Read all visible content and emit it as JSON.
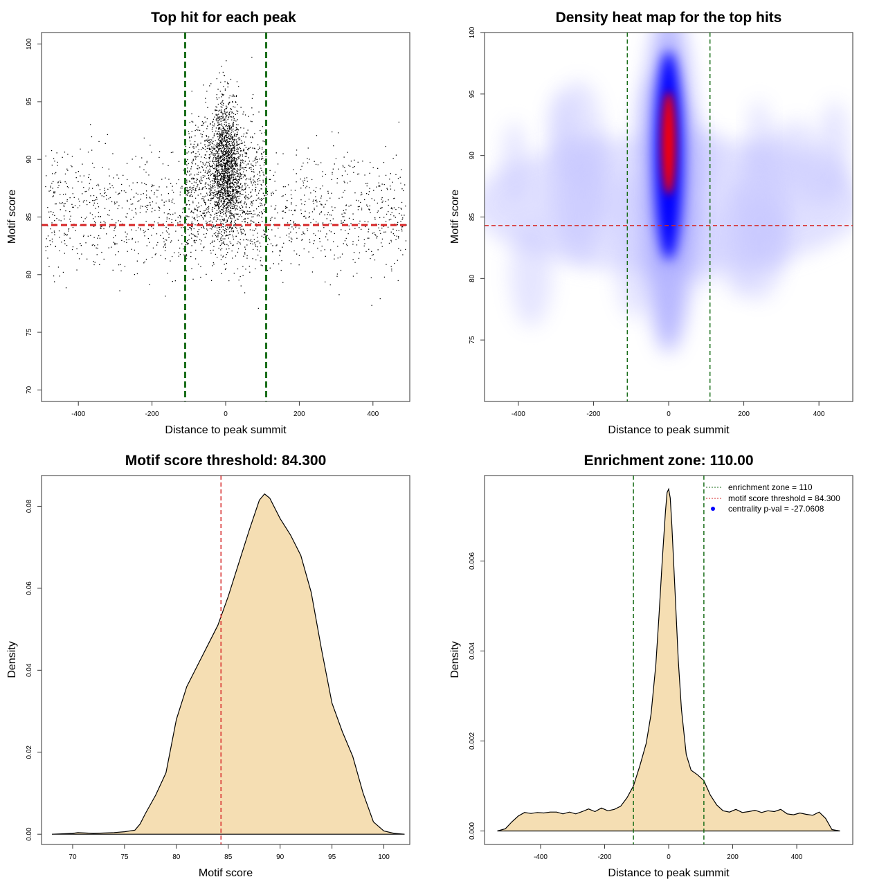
{
  "chart_data": [
    {
      "id": "scatter",
      "type": "scatter",
      "title": "Top hit for each peak",
      "xlabel": "Distance to peak summit",
      "ylabel": "Motif score",
      "xlim": [
        -500,
        500
      ],
      "ylim": [
        69,
        101
      ],
      "xticks": [
        -400,
        -200,
        0,
        200,
        400
      ],
      "yticks": [
        70,
        75,
        80,
        85,
        90,
        95,
        100
      ],
      "vlines": [
        -110,
        110
      ],
      "hline": 84.3,
      "colors": {
        "points": "#000000",
        "vlines": "#1a6e1a",
        "hline": "#d62728"
      },
      "points_summary": {
        "central_band": {
          "x_center": 0,
          "x_spread": 30,
          "y_center": 89.5,
          "y_spread": 4,
          "count": 1600
        },
        "mid_band": {
          "x_range": [
            -110,
            110
          ],
          "y_center": 88,
          "y_spread": 4.5,
          "count": 900
        },
        "background": {
          "x_range": [
            -490,
            490
          ],
          "y_center": 85.5,
          "y_spread": 3.8,
          "count": 1400
        }
      }
    },
    {
      "id": "heatmap",
      "type": "heatmap",
      "title": "Density heat map for the top hits",
      "xlabel": "Distance to peak summit",
      "ylabel": "Motif score",
      "xlim": [
        -490,
        490
      ],
      "ylim": [
        70,
        100
      ],
      "xticks": [
        -400,
        -200,
        0,
        200,
        400
      ],
      "yticks": [
        75,
        80,
        85,
        90,
        95,
        100
      ],
      "vlines": [
        -110,
        110
      ],
      "hline": 84.3,
      "peak": {
        "x": 0,
        "y": 91
      },
      "colors": {
        "low": "#ffffff",
        "mid": "#0000ff",
        "high": "#ff0000",
        "vlines": "#1a6e1a",
        "hline": "#d62728"
      }
    },
    {
      "id": "score_density",
      "type": "area",
      "title": "Motif score threshold: 84.300",
      "xlabel": "Motif score",
      "ylabel": "Density",
      "xlim": [
        67,
        102.5
      ],
      "ylim": [
        -0.0025,
        0.0875
      ],
      "xticks": [
        70,
        75,
        80,
        85,
        90,
        95,
        100
      ],
      "yticks": [
        0.0,
        0.02,
        0.04,
        0.06,
        0.08
      ],
      "ytick_labels": [
        "0.00",
        "0.02",
        "0.04",
        "0.06",
        "0.08"
      ],
      "vline": 84.3,
      "colors": {
        "fill": "#f5deb3",
        "line": "#000000",
        "vline": "#d62728"
      },
      "x": [
        68,
        70,
        70.5,
        72,
        74,
        75,
        76,
        76.5,
        77,
        78,
        79,
        80,
        81,
        82,
        83,
        84,
        85,
        86,
        87,
        88,
        88.5,
        89,
        90,
        91,
        92,
        93,
        94,
        95,
        96,
        97,
        98,
        99,
        100,
        101,
        102
      ],
      "y": [
        0.0,
        0.0002,
        0.0004,
        0.0002,
        0.0004,
        0.0006,
        0.001,
        0.0025,
        0.005,
        0.0095,
        0.015,
        0.028,
        0.036,
        0.041,
        0.046,
        0.051,
        0.058,
        0.066,
        0.074,
        0.0815,
        0.083,
        0.082,
        0.077,
        0.073,
        0.068,
        0.059,
        0.045,
        0.032,
        0.025,
        0.019,
        0.01,
        0.003,
        0.0008,
        0.0002,
        0.0
      ]
    },
    {
      "id": "distance_density",
      "type": "area",
      "title": "Enrichment zone: 110.00",
      "xlabel": "Distance to peak summit",
      "ylabel": "Density",
      "xlim": [
        -575,
        575
      ],
      "ylim": [
        -0.0003,
        0.0079
      ],
      "xticks": [
        -400,
        -200,
        0,
        200,
        400
      ],
      "yticks": [
        0.0,
        0.002,
        0.004,
        0.006
      ],
      "ytick_labels": [
        "0.000",
        "0.002",
        "0.004",
        "0.006"
      ],
      "vlines": [
        -110,
        110
      ],
      "colors": {
        "fill": "#f5deb3",
        "line": "#000000",
        "vlines": "#1a6e1a"
      },
      "x": [
        -535,
        -510,
        -490,
        -470,
        -450,
        -430,
        -410,
        -390,
        -370,
        -350,
        -330,
        -310,
        -290,
        -270,
        -250,
        -230,
        -210,
        -190,
        -170,
        -150,
        -130,
        -110,
        -90,
        -70,
        -55,
        -40,
        -30,
        -20,
        -10,
        -5,
        0,
        5,
        10,
        20,
        30,
        40,
        55,
        70,
        90,
        110,
        130,
        150,
        170,
        190,
        210,
        230,
        250,
        270,
        290,
        310,
        330,
        350,
        370,
        390,
        410,
        430,
        450,
        470,
        490,
        510,
        535
      ],
      "y": [
        0.0,
        5e-05,
        0.0002,
        0.00033,
        0.00041,
        0.00039,
        0.00041,
        0.0004,
        0.00042,
        0.00042,
        0.00038,
        0.00042,
        0.00038,
        0.00043,
        0.00049,
        0.00043,
        0.00051,
        0.00045,
        0.00048,
        0.00055,
        0.00074,
        0.001,
        0.00145,
        0.00195,
        0.0026,
        0.0037,
        0.0048,
        0.006,
        0.0071,
        0.00752,
        0.0076,
        0.0074,
        0.0068,
        0.0053,
        0.0038,
        0.0027,
        0.0017,
        0.00135,
        0.00125,
        0.00112,
        0.0008,
        0.00058,
        0.00045,
        0.00042,
        0.00048,
        0.00041,
        0.00043,
        0.00046,
        0.00041,
        0.00045,
        0.00043,
        0.00048,
        0.00038,
        0.00036,
        0.0004,
        0.00037,
        0.00035,
        0.00042,
        0.00028,
        3e-05,
        0.0
      ]
    }
  ],
  "legend": {
    "items": [
      {
        "label": "enrichment zone = 110",
        "style": "dotted",
        "color": "#1a6e1a"
      },
      {
        "label": "motif score threshold = 84.300",
        "style": "dotted",
        "color": "#d62728"
      },
      {
        "label": "centrality p-val = -27.0608",
        "style": "point",
        "color": "#0000ff"
      }
    ]
  }
}
